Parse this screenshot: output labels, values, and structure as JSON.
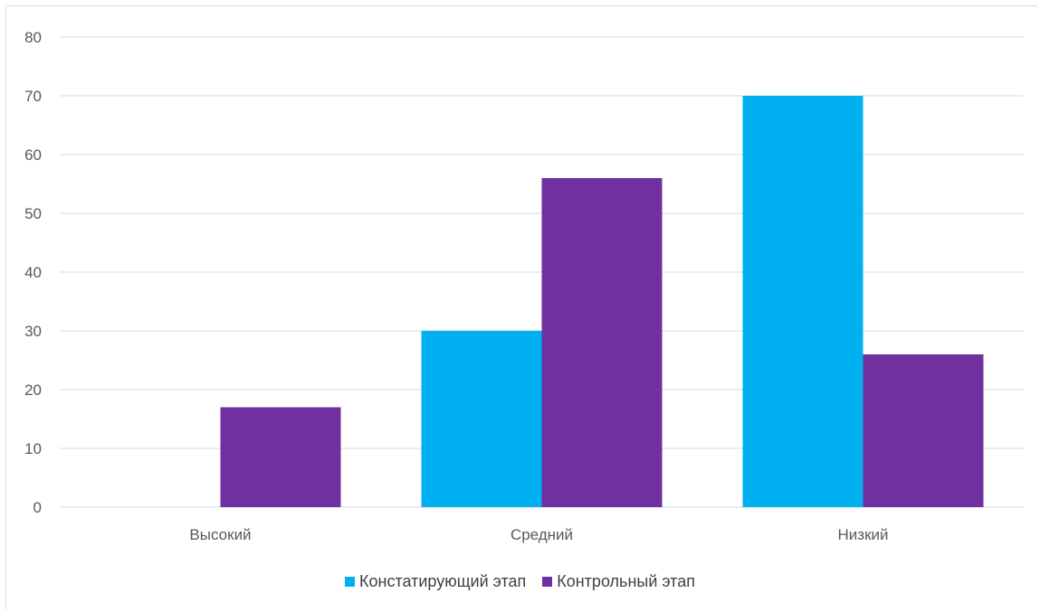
{
  "chart_data": {
    "type": "bar",
    "categories": [
      "Высокий",
      "Средний",
      "Низкий"
    ],
    "series": [
      {
        "name": "Констатирующий этап",
        "values": [
          0,
          30,
          70
        ],
        "color": "#00b0f0"
      },
      {
        "name": "Контрольный этап",
        "values": [
          17,
          56,
          26
        ],
        "color": "#7030a0"
      }
    ],
    "ylim": [
      0,
      80
    ],
    "yticks": [
      0,
      10,
      20,
      30,
      40,
      50,
      60,
      70,
      80
    ],
    "grid": true,
    "legend": "bottom",
    "title": "",
    "xlabel": "",
    "ylabel": ""
  }
}
